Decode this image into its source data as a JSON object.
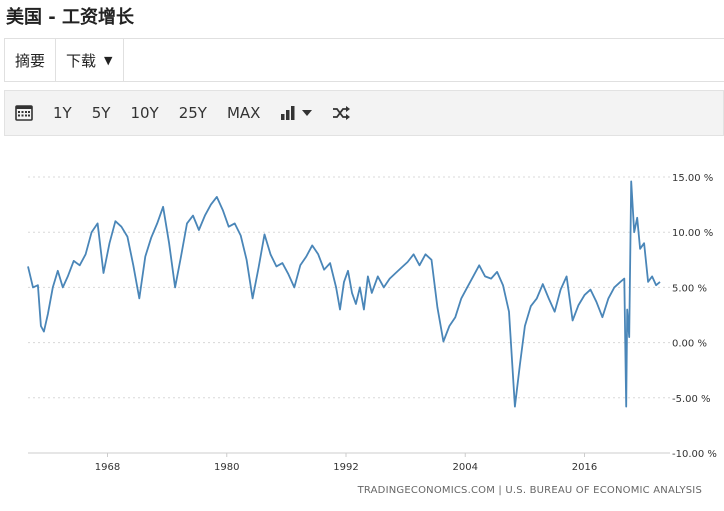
{
  "title": "美国 - 工资增长",
  "tabs": [
    {
      "label": "摘要"
    },
    {
      "label": "下载"
    }
  ],
  "toolbar": {
    "ranges": [
      "1Y",
      "5Y",
      "10Y",
      "25Y",
      "MAX"
    ],
    "icons": [
      "calendar-icon",
      "bar-chart-icon",
      "chevron-down-icon",
      "shuffle-icon"
    ]
  },
  "source": "TRADINGECONOMICS.COM | U.S. BUREAU OF ECONOMIC ANALYSIS",
  "colors": {
    "line": "#4a86b8",
    "grid": "#d8d8d8"
  },
  "chart_data": {
    "type": "line",
    "title": "",
    "xlabel": "",
    "ylabel": "",
    "xlim": [
      1960,
      2024
    ],
    "ylim": [
      -10,
      15
    ],
    "x_ticks": [
      1968,
      1980,
      1992,
      2004,
      2016
    ],
    "y_ticks": [
      15,
      10,
      5,
      0,
      -5,
      -10
    ],
    "y_tick_labels": [
      "15.00 %",
      "10.00 %",
      "5.00 %",
      "0.00 %",
      "-5.00 %",
      "-10.00 %"
    ],
    "grid": true,
    "y_axis_side": "right",
    "series": [
      {
        "x": [
          1960.0,
          1960.5,
          1961.0,
          1961.3,
          1961.6,
          1962.0,
          1962.5,
          1963.0,
          1963.5,
          1964.0,
          1964.6,
          1965.2,
          1965.8,
          1966.4,
          1967.0,
          1967.6,
          1968.2,
          1968.8,
          1969.4,
          1970.0,
          1970.6,
          1971.2,
          1971.8,
          1972.4,
          1973.0,
          1973.6,
          1974.2,
          1974.8,
          1975.4,
          1976.0,
          1976.6,
          1977.2,
          1977.8,
          1978.4,
          1979.0,
          1979.6,
          1980.2,
          1980.8,
          1981.4,
          1982.0,
          1982.6,
          1983.2,
          1983.8,
          1984.4,
          1985.0,
          1985.6,
          1986.2,
          1986.8,
          1987.4,
          1988.0,
          1988.6,
          1989.2,
          1989.8,
          1990.4,
          1991.0,
          1991.4,
          1991.8,
          1992.2,
          1992.6,
          1993.0,
          1993.4,
          1993.8,
          1994.2,
          1994.6,
          1995.2,
          1995.8,
          1996.4,
          1997.0,
          1997.6,
          1998.2,
          1998.8,
          1999.4,
          2000.0,
          2000.6,
          2001.2,
          2001.8,
          2002.4,
          2003.0,
          2003.6,
          2004.2,
          2004.8,
          2005.4,
          2006.0,
          2006.6,
          2007.2,
          2007.8,
          2008.4,
          2009.0,
          2009.5,
          2010.0,
          2010.6,
          2011.2,
          2011.8,
          2012.4,
          2013.0,
          2013.6,
          2014.2,
          2014.8,
          2015.4,
          2016.0,
          2016.6,
          2017.2,
          2017.8,
          2018.4,
          2019.0,
          2019.6,
          2020.0,
          2020.2,
          2020.3,
          2020.5,
          2020.7,
          2021.0,
          2021.3,
          2021.6,
          2022.0,
          2022.4,
          2022.8,
          2023.2,
          2023.6
        ],
        "y": [
          6.9,
          5.0,
          5.2,
          1.5,
          1.0,
          2.6,
          5.0,
          6.5,
          5.0,
          6.0,
          7.4,
          7.0,
          8.0,
          10.0,
          10.8,
          6.3,
          9.0,
          11.0,
          10.5,
          9.6,
          7.0,
          4.0,
          7.8,
          9.5,
          10.8,
          12.3,
          9.0,
          5.0,
          7.8,
          10.8,
          11.5,
          10.2,
          11.5,
          12.5,
          13.2,
          12.0,
          10.5,
          10.8,
          9.7,
          7.5,
          4.0,
          6.8,
          9.8,
          8.0,
          6.9,
          7.2,
          6.2,
          5.0,
          7.0,
          7.8,
          8.8,
          8.0,
          6.6,
          7.2,
          5.0,
          3.0,
          5.5,
          6.5,
          4.5,
          3.5,
          5.0,
          3.0,
          6.0,
          4.5,
          6.0,
          5.0,
          5.8,
          6.3,
          6.8,
          7.3,
          8.0,
          7.0,
          8.0,
          7.5,
          3.2,
          0.1,
          1.5,
          2.3,
          4.0,
          5.0,
          6.0,
          7.0,
          6.0,
          5.8,
          6.4,
          5.2,
          2.8,
          -5.8,
          -2.0,
          1.5,
          3.3,
          4.0,
          5.3,
          4.0,
          2.8,
          4.8,
          6.0,
          2.0,
          3.4,
          4.3,
          4.8,
          3.7,
          2.3,
          4.0,
          5.0,
          5.5,
          5.8,
          -5.8,
          3.0,
          0.5,
          14.6,
          10.0,
          11.3,
          8.5,
          9.0,
          5.5,
          6.0,
          5.2,
          5.5
        ]
      }
    ]
  }
}
